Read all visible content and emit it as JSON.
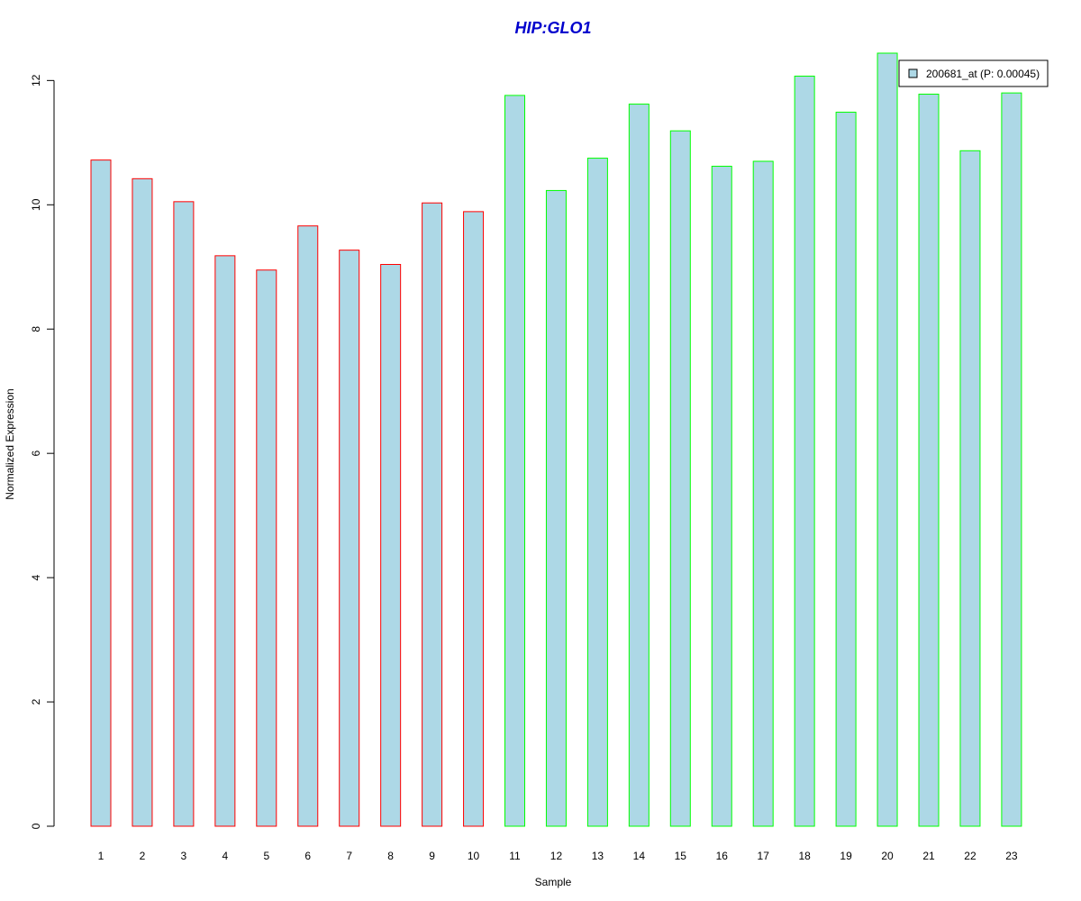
{
  "chart_data": {
    "type": "bar",
    "title": "HIP:GLO1",
    "xlabel": "Sample",
    "ylabel": "Normalized Expression",
    "categories": [
      "1",
      "2",
      "3",
      "4",
      "5",
      "6",
      "7",
      "8",
      "9",
      "10",
      "11",
      "12",
      "13",
      "14",
      "15",
      "16",
      "17",
      "18",
      "19",
      "20",
      "21",
      "22",
      "23"
    ],
    "series": [
      {
        "name": "200681_at (P: 0.00045)",
        "values": [
          10.72,
          10.42,
          10.05,
          9.18,
          8.95,
          9.66,
          9.27,
          9.04,
          10.03,
          9.89,
          11.76,
          10.23,
          10.75,
          11.62,
          11.19,
          10.62,
          10.7,
          12.07,
          11.49,
          12.44,
          11.78,
          10.87,
          11.8
        ]
      }
    ],
    "group_border_colors": [
      "#ff0000",
      "#ff0000",
      "#ff0000",
      "#ff0000",
      "#ff0000",
      "#ff0000",
      "#ff0000",
      "#ff0000",
      "#ff0000",
      "#ff0000",
      "#00ff00",
      "#00ff00",
      "#00ff00",
      "#00ff00",
      "#00ff00",
      "#00ff00",
      "#00ff00",
      "#00ff00",
      "#00ff00",
      "#00ff00",
      "#00ff00",
      "#00ff00",
      "#00ff00"
    ],
    "bar_fill": "#add8e6",
    "title_color": "#0000cd",
    "ylim": [
      0,
      12.44
    ],
    "yticks": [
      0,
      2,
      4,
      6,
      8,
      10,
      12
    ],
    "legend_position": "top-right",
    "grid": false
  }
}
